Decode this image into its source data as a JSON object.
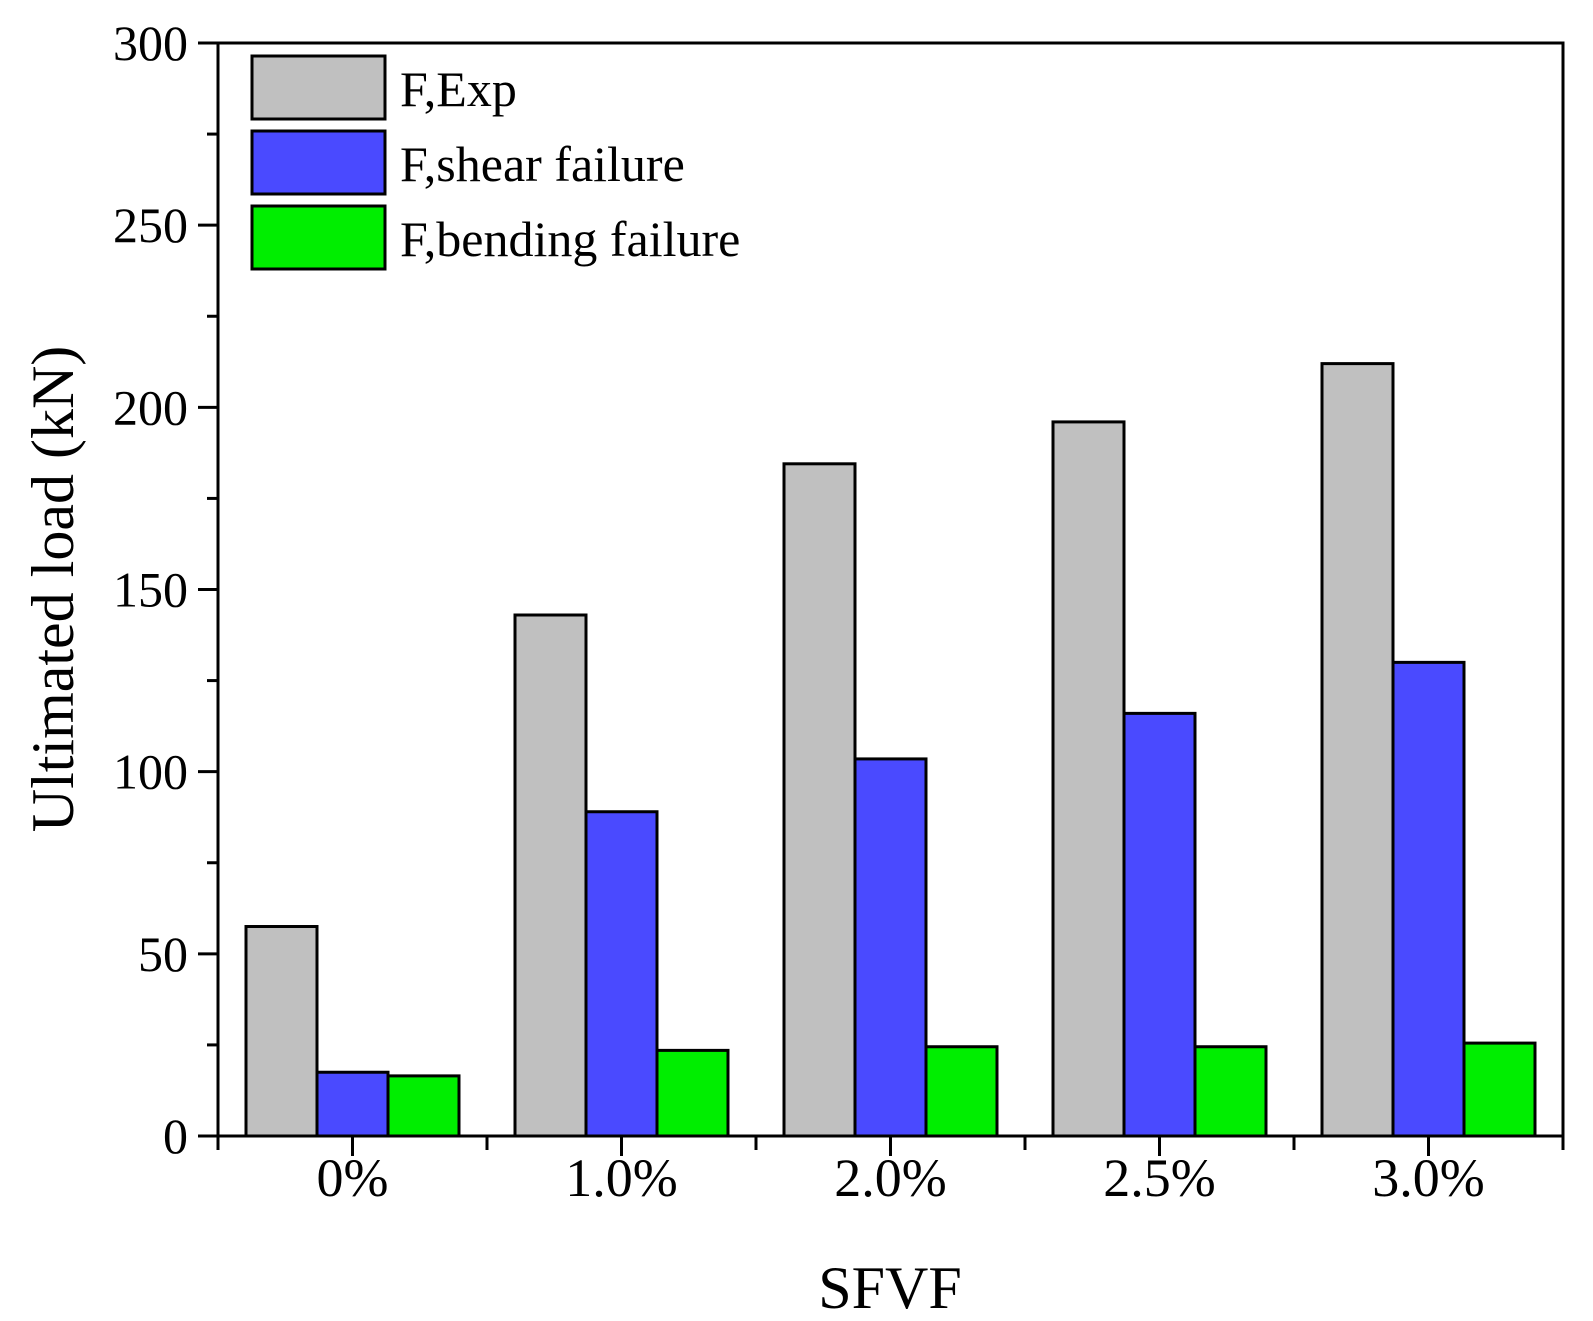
{
  "chart_data": {
    "type": "bar",
    "title": "",
    "xlabel": "SFVF",
    "ylabel": "Ultimated load (kN)",
    "ylim": [
      0,
      300
    ],
    "yticks": [
      0,
      50,
      100,
      150,
      200,
      250,
      300
    ],
    "categories": [
      "0%",
      "1.0%",
      "2.0%",
      "2.5%",
      "3.0%"
    ],
    "series": [
      {
        "name": "F,Exp",
        "color": "#c0c0c0",
        "values": [
          57.5,
          143,
          184.5,
          196,
          212
        ]
      },
      {
        "name": "F,shear failure",
        "color": "#4a4aff",
        "values": [
          17.5,
          89,
          103.5,
          116,
          130
        ]
      },
      {
        "name": "F,bending failure",
        "color": "#00ee00",
        "values": [
          16.5,
          23.5,
          24.5,
          24.5,
          25.5
        ]
      }
    ],
    "legend_position": "top-left",
    "grid": false
  }
}
